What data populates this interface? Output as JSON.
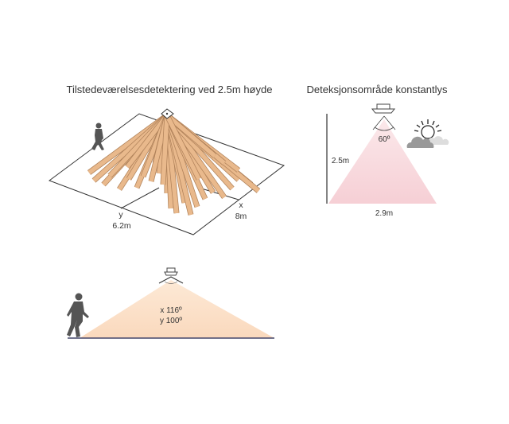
{
  "occupancy": {
    "title": "Tilstedeværelsesdetektering ved 2.5m høyde",
    "y_label": "y",
    "y_value": "6.2m",
    "x_label": "x",
    "x_value": "8m",
    "ray_color": "#e9b98c"
  },
  "constant_light": {
    "title": "Deteksjonsområde konstantlys",
    "angle": "60º",
    "height": "2.5m",
    "width": "2.9m",
    "cone_color": "#f8d9dd"
  },
  "side_view": {
    "x_angle": "x 116º",
    "y_angle": "y 100º",
    "cone_color": "#fbe1c9",
    "floor_color": "#44466a"
  }
}
